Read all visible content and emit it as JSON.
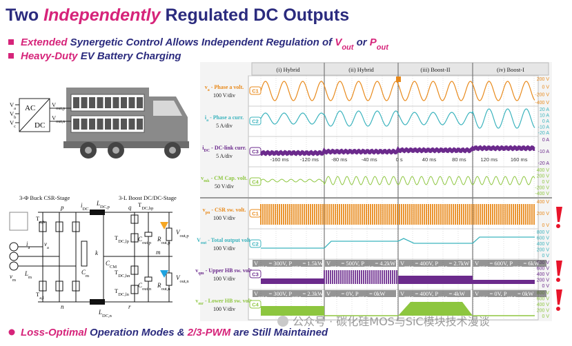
{
  "title": [
    {
      "text": "Two ",
      "style": "title"
    },
    {
      "text": "Independently",
      "style": "title-em"
    },
    {
      "text": " Regulated DC Outputs",
      "style": "title"
    }
  ],
  "bullets": [
    [
      {
        "text": "Extended",
        "style": "em"
      },
      {
        "text": " Synergetic Control Allows Independent Regulation of ",
        "style": "norm"
      },
      {
        "text": "V",
        "style": "em"
      },
      {
        "text": "out",
        "style": "em-sub"
      },
      {
        "text": " or ",
        "style": "norm"
      },
      {
        "text": "P",
        "style": "em"
      },
      {
        "text": "out",
        "style": "em-sub"
      }
    ],
    [
      {
        "text": "Heavy-Duty",
        "style": "em"
      },
      {
        "text": " EV Battery Charging",
        "style": "norm"
      }
    ]
  ],
  "footer": [
    {
      "text": "Loss-Optimal",
      "style": "em"
    },
    {
      "text": " Operation Modes & ",
      "style": "norm"
    },
    {
      "text": "2/3-PWM",
      "style": "em"
    },
    {
      "text": " are Still Maintained",
      "style": "norm"
    }
  ],
  "converter": {
    "ac": "AC",
    "dc": "DC",
    "inputs": [
      [
        {
          "text": "V",
          "style": "c"
        },
        {
          "text": "a",
          "style": "c-sub"
        }
      ],
      [
        {
          "text": "V",
          "style": "c"
        },
        {
          "text": "b",
          "style": "c-sub"
        }
      ],
      [
        {
          "text": "V",
          "style": "c"
        },
        {
          "text": "c",
          "style": "c-sub"
        }
      ]
    ],
    "outputs": [
      [
        {
          "text": "V",
          "style": "c"
        },
        {
          "text": "out,p",
          "style": "c-sub"
        }
      ],
      [
        {
          "text": "V",
          "style": "c"
        },
        {
          "text": "out,n",
          "style": "c-sub"
        }
      ]
    ]
  },
  "circuit": {
    "labels": [
      [
        {
          "text": "3-Φ Buck CSR-Stage",
          "style": "c"
        }
      ],
      [
        {
          "text": "3-L Boost DC/DC-Stage",
          "style": "c"
        }
      ],
      [
        {
          "text": "p",
          "style": "ci"
        }
      ],
      [
        {
          "text": "i",
          "style": "ci"
        },
        {
          "text": "DC",
          "style": "c-sub"
        }
      ],
      [
        {
          "text": "L",
          "style": "ci"
        },
        {
          "text": "DC,p",
          "style": "c-sub"
        }
      ],
      [
        {
          "text": "q",
          "style": "ci"
        }
      ],
      [
        {
          "text": "T",
          "style": "c"
        },
        {
          "text": "DC,hp",
          "style": "c-sub"
        }
      ],
      [
        {
          "text": "C",
          "style": "ci"
        },
        {
          "text": "out,p",
          "style": "c-sub"
        }
      ],
      [
        {
          "text": "R",
          "style": "ci"
        },
        {
          "text": "out,p",
          "style": "c-sub"
        }
      ],
      [
        {
          "text": "V",
          "style": "ci"
        },
        {
          "text": "out,p",
          "style": "c-sub"
        }
      ],
      [
        {
          "text": "m",
          "style": "ci"
        }
      ],
      [
        {
          "text": "k",
          "style": "ci"
        }
      ],
      [
        {
          "text": "C",
          "style": "ci"
        },
        {
          "text": "CM",
          "style": "c-sub"
        }
      ],
      [
        {
          "text": "C",
          "style": "ci"
        },
        {
          "text": "m",
          "style": "c-sub"
        }
      ],
      [
        {
          "text": "v",
          "style": "ci"
        },
        {
          "text": "m",
          "style": "c-sub"
        }
      ],
      [
        {
          "text": "L",
          "style": "ci"
        },
        {
          "text": "m",
          "style": "c-sub"
        }
      ],
      [
        {
          "text": "n",
          "style": "ci"
        }
      ],
      [
        {
          "text": "r",
          "style": "ci"
        }
      ],
      [
        {
          "text": "L",
          "style": "ci"
        },
        {
          "text": "DC,n",
          "style": "c-sub"
        }
      ],
      [
        {
          "text": "C",
          "style": "ci"
        },
        {
          "text": "out,n",
          "style": "c-sub"
        }
      ],
      [
        {
          "text": "R",
          "style": "ci"
        },
        {
          "text": "out,n",
          "style": "c-sub"
        }
      ],
      [
        {
          "text": "V",
          "style": "ci"
        },
        {
          "text": "out,n",
          "style": "c-sub"
        }
      ],
      [
        {
          "text": "T",
          "style": "c"
        },
        {
          "text": "DC,lp",
          "style": "c-sub"
        }
      ],
      [
        {
          "text": "T",
          "style": "c"
        },
        {
          "text": "DC,hn",
          "style": "c-sub"
        }
      ],
      [
        {
          "text": "T",
          "style": "c"
        },
        {
          "text": "DC,ln",
          "style": "c-sub"
        }
      ],
      [
        {
          "text": "i",
          "style": "ci"
        },
        {
          "text": "a",
          "style": "c-sub"
        }
      ],
      [
        {
          "text": "v",
          "style": "ci"
        },
        {
          "text": "a",
          "style": "c-sub"
        }
      ],
      [
        {
          "text": "T",
          "style": "c"
        },
        {
          "text": "a,h",
          "style": "c-sub"
        }
      ],
      [
        {
          "text": "T",
          "style": "c"
        },
        {
          "text": "a,l",
          "style": "c-sub"
        }
      ]
    ]
  },
  "scope": {
    "modes": [
      "(i) Hybrid",
      "(ii) Hybrid",
      "(iii) Boost-II",
      "(iv) Boost-I"
    ],
    "channels": [
      {
        "tag": "C1",
        "color": "#e8891a",
        "name": [
          {
            "text": "v",
            "style": "ch"
          },
          {
            "text": "a",
            "style": "ch-sub"
          },
          {
            "text": " - Phase a volt.",
            "style": "ch"
          }
        ],
        "scale": "100 V/div",
        "ticks": [
          "200 V",
          "0 V",
          "-200 V",
          "-400 V"
        ]
      },
      {
        "tag": "C2",
        "color": "#3ab3bd",
        "name": [
          {
            "text": "i",
            "style": "ch"
          },
          {
            "text": "a",
            "style": "ch-sub"
          },
          {
            "text": " - Phase a curr.",
            "style": "ch"
          }
        ],
        "scale": "5 A/div",
        "ticks": [
          "20 A",
          "10 A",
          "0 A",
          "-10 A",
          "-20 A"
        ]
      },
      {
        "tag": "C3",
        "color": "#6b2a8c",
        "name": [
          {
            "text": "i",
            "style": "ch"
          },
          {
            "text": "DC",
            "style": "ch-sub"
          },
          {
            "text": " - DC-link curr.",
            "style": "ch"
          }
        ],
        "scale": "5 A/div",
        "ticks": [
          "0 A",
          "-10 A",
          "-20 A"
        ]
      },
      {
        "tag": "C4",
        "color": "#8dc63f",
        "name": [
          {
            "text": "v",
            "style": "ch"
          },
          {
            "text": "mk",
            "style": "ch-sub"
          },
          {
            "text": " - CM Cap. volt.",
            "style": "ch"
          }
        ],
        "scale": "50 V/div",
        "ticks": [
          "400 V",
          "200 V",
          "0 V",
          "-200 V",
          "-400 V"
        ]
      },
      {
        "tag": "C1",
        "color": "#e8891a",
        "name": [
          {
            "text": "v",
            "style": "ch"
          },
          {
            "text": "pn",
            "style": "ch-sub"
          },
          {
            "text": " - CSR sw. volt.",
            "style": "ch"
          }
        ],
        "scale": "100 V/div",
        "ticks": [
          "400 V",
          "200 V",
          "0 V"
        ]
      },
      {
        "tag": "C2",
        "color": "#3ab3bd",
        "name": [
          {
            "text": "V",
            "style": "ch"
          },
          {
            "text": "out",
            "style": "ch-sub"
          },
          {
            "text": " - Total output volt.",
            "style": "ch"
          }
        ],
        "scale": "100 V/div",
        "ticks": [
          "800 V",
          "600 V",
          "400 V",
          "200 V",
          "0 V"
        ]
      },
      {
        "tag": "C3",
        "color": "#6b2a8c",
        "name": [
          {
            "text": "v",
            "style": "ch"
          },
          {
            "text": "qm",
            "style": "ch-sub"
          },
          {
            "text": " - Upper HB sw. volt.",
            "style": "ch"
          }
        ],
        "scale": "100 V/div",
        "ticks": [
          "800 V",
          "600 V",
          "400 V",
          "200 V",
          "0 V"
        ]
      },
      {
        "tag": "C4",
        "color": "#8dc63f",
        "name": [
          {
            "text": "v",
            "style": "ch"
          },
          {
            "text": "mr",
            "style": "ch-sub"
          },
          {
            "text": " - Lower HB sw. volt.",
            "style": "ch"
          }
        ],
        "scale": "100 V/div",
        "ticks": [
          "800 V",
          "600 V",
          "400 V",
          "200 V",
          "0 V"
        ]
      }
    ],
    "time_ticks": [
      "-160 ms",
      "-120 ms",
      "-80 ms",
      "-40 ms",
      "0 s",
      "40 ms",
      "80 ms",
      "120 ms",
      "160 ms"
    ],
    "operating_points": {
      "upper": [
        [
          {
            "text": "V",
            "style": "op"
          },
          {
            "text": "out,p",
            "style": "op-sub"
          },
          {
            "text": " = 300V, ",
            "style": "op"
          },
          {
            "text": "P",
            "style": "op"
          },
          {
            "text": "out,p",
            "style": "op-sub"
          },
          {
            "text": " = 1.5kW",
            "style": "op"
          }
        ],
        [
          {
            "text": "V",
            "style": "op"
          },
          {
            "text": "out,p",
            "style": "op-sub"
          },
          {
            "text": " = 500V, ",
            "style": "op"
          },
          {
            "text": "P",
            "style": "op"
          },
          {
            "text": "out,p",
            "style": "op-sub"
          },
          {
            "text": " = 4.2kW",
            "style": "op"
          }
        ],
        [
          {
            "text": "V",
            "style": "op"
          },
          {
            "text": "out,p",
            "style": "op-sub"
          },
          {
            "text": " = 400V, ",
            "style": "op"
          },
          {
            "text": "P",
            "style": "op"
          },
          {
            "text": "out,p",
            "style": "op-sub"
          },
          {
            "text": " = 2.7kW",
            "style": "op"
          }
        ],
        [
          {
            "text": "V",
            "style": "op"
          },
          {
            "text": "out,p",
            "style": "op-sub"
          },
          {
            "text": " = 600V, ",
            "style": "op"
          },
          {
            "text": "P",
            "style": "op"
          },
          {
            "text": "out,p",
            "style": "op-sub"
          },
          {
            "text": " = 6kW",
            "style": "op"
          }
        ]
      ],
      "lower": [
        [
          {
            "text": "V",
            "style": "op"
          },
          {
            "text": "out,n",
            "style": "op-sub"
          },
          {
            "text": " = 300V, ",
            "style": "op"
          },
          {
            "text": "P",
            "style": "op"
          },
          {
            "text": "out,n",
            "style": "op-sub"
          },
          {
            "text": " = 2.3kW",
            "style": "op"
          }
        ],
        [
          {
            "text": "V",
            "style": "op"
          },
          {
            "text": "out,n",
            "style": "op-sub"
          },
          {
            "text": " = 0V, ",
            "style": "op"
          },
          {
            "text": "P",
            "style": "op"
          },
          {
            "text": "out,n",
            "style": "op-sub"
          },
          {
            "text": " = 0kW",
            "style": "op"
          }
        ],
        [
          {
            "text": "V",
            "style": "op"
          },
          {
            "text": "out,n",
            "style": "op-sub"
          },
          {
            "text": " = 400V, ",
            "style": "op"
          },
          {
            "text": "P",
            "style": "op"
          },
          {
            "text": "out,n",
            "style": "op-sub"
          },
          {
            "text": " = 4kW",
            "style": "op"
          }
        ],
        [
          {
            "text": "V",
            "style": "op"
          },
          {
            "text": "out,n",
            "style": "op-sub"
          },
          {
            "text": " = 0V, ",
            "style": "op"
          },
          {
            "text": "P",
            "style": "op"
          },
          {
            "text": "out,n",
            "style": "op-sub"
          },
          {
            "text": " = 0kW",
            "style": "op"
          }
        ]
      ]
    }
  },
  "watermark": "公众号 · 碳化硅MOS与SiC模块技术漫谈"
}
